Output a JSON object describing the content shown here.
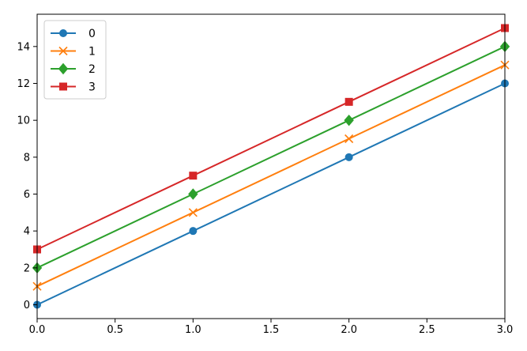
{
  "chart_data": {
    "type": "line",
    "title": "",
    "xlabel": "",
    "ylabel": "",
    "xlim": [
      0.0,
      3.0
    ],
    "ylim": [
      -0.75,
      15.75
    ],
    "x": [
      0,
      1,
      2,
      3
    ],
    "x_ticks": [
      0.0,
      0.5,
      1.0,
      1.5,
      2.0,
      2.5,
      3.0
    ],
    "x_tick_labels": [
      "0.0",
      "0.5",
      "1.0",
      "1.5",
      "2.0",
      "2.5",
      "3.0"
    ],
    "y_ticks": [
      0,
      2,
      4,
      6,
      8,
      10,
      12,
      14
    ],
    "y_tick_labels": [
      "0",
      "2",
      "4",
      "6",
      "8",
      "10",
      "12",
      "14"
    ],
    "grid": false,
    "legend_position": "top-left",
    "series": [
      {
        "name": "0",
        "values": [
          0,
          4,
          8,
          12
        ],
        "color": "#1f77b4",
        "marker": "circle"
      },
      {
        "name": "1",
        "values": [
          1,
          5,
          9,
          13
        ],
        "color": "#ff7f0e",
        "marker": "x"
      },
      {
        "name": "2",
        "values": [
          2,
          6,
          10,
          14
        ],
        "color": "#2ca02c",
        "marker": "diamond"
      },
      {
        "name": "3",
        "values": [
          3,
          7,
          11,
          15
        ],
        "color": "#d62728",
        "marker": "square"
      }
    ]
  }
}
